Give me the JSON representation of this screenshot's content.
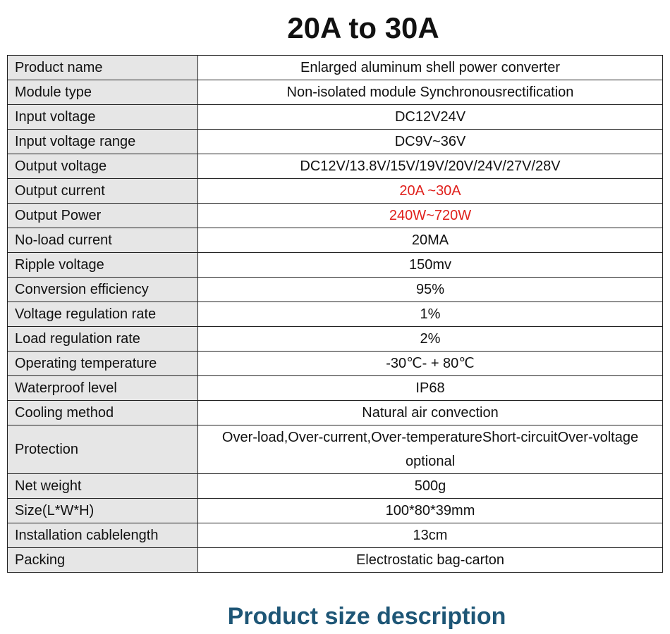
{
  "title": "20A to 30A",
  "table": {
    "rows": [
      [
        "Product name",
        "Enlarged aluminum shell power converter"
      ],
      [
        "Module type",
        "Non-isolated module Synchronousrectification"
      ],
      [
        "Input voltage",
        "DC12V24V"
      ],
      [
        "Input voltage range",
        "DC9V~36V"
      ],
      [
        "Output voltage",
        "DC12V/13.8V/15V/19V/20V/24V/27V/28V"
      ],
      [
        "Output current",
        "20A ~30A"
      ],
      [
        "Output Power",
        "240W~720W"
      ],
      [
        "No-load current",
        "20MA"
      ],
      [
        "Ripple voltage",
        "150mv"
      ],
      [
        "Conversion efficiency",
        "95%"
      ],
      [
        "Voltage regulation rate",
        "1%"
      ],
      [
        "Load regulation rate",
        "2%"
      ],
      [
        "Operating temperature",
        "-30℃- + 80℃"
      ],
      [
        "Waterproof level",
        "IP68"
      ],
      [
        "Cooling method",
        "Natural air convection"
      ],
      [
        "Protection",
        "Over-load,Over-current,Over-temperatureShort-circuitOver-voltage optional"
      ],
      [
        "Net weight",
        "500g"
      ],
      [
        "Size(L*W*H)",
        "100*80*39mm"
      ],
      [
        "Installation cablelength",
        "13cm"
      ],
      [
        "Packing",
        "Electrostatic bag-carton"
      ]
    ]
  },
  "footer": "Product size description"
}
